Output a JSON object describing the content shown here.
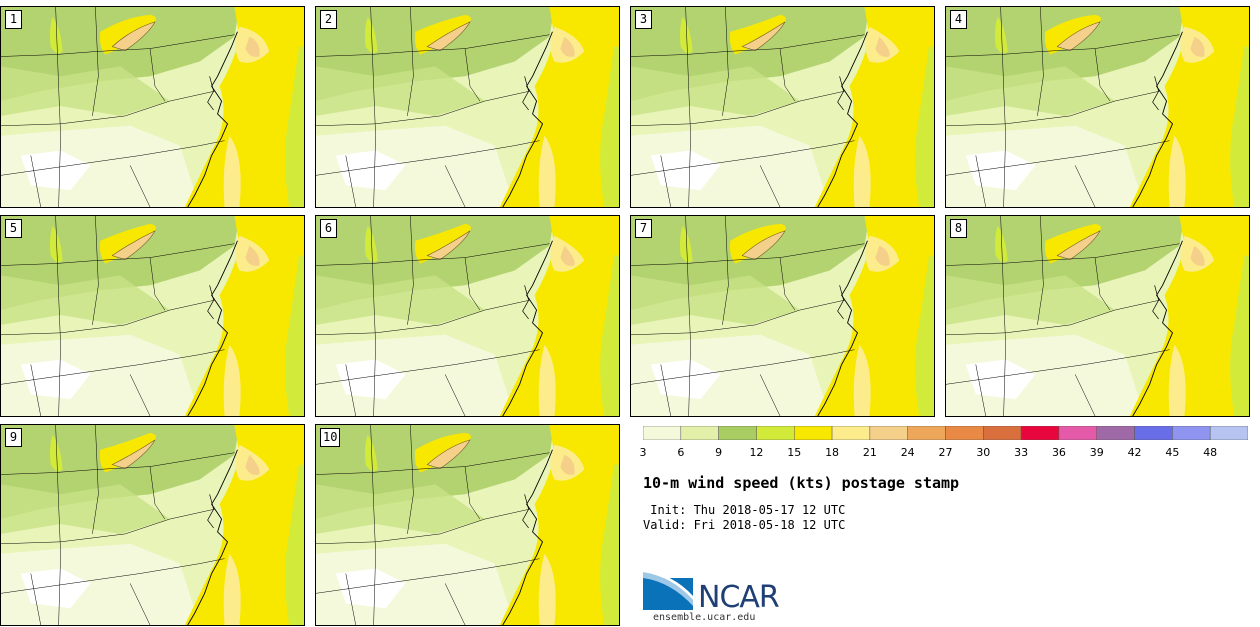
{
  "title": "10-m wind speed (kts) postage stamp",
  "init_line": " Init: Thu 2018-05-17 12 UTC",
  "valid_line": "Valid: Fri 2018-05-18 12 UTC",
  "panels": [
    {
      "label": "1"
    },
    {
      "label": "2"
    },
    {
      "label": "3"
    },
    {
      "label": "4"
    },
    {
      "label": "5"
    },
    {
      "label": "6"
    },
    {
      "label": "7"
    },
    {
      "label": "8"
    },
    {
      "label": "9"
    },
    {
      "label": "10"
    }
  ],
  "colorbar": {
    "ticks": [
      "3",
      "6",
      "9",
      "12",
      "15",
      "18",
      "21",
      "24",
      "27",
      "30",
      "33",
      "36",
      "39",
      "42",
      "45",
      "48"
    ],
    "colors": [
      "#f5f9dc",
      "#e3f0aa",
      "#a9cc63",
      "#d2eb3b",
      "#f8e800",
      "#fcec8c",
      "#f5d08a",
      "#eea65a",
      "#e88a45",
      "#d96f3c",
      "#e8073c",
      "#e45aa8",
      "#9e69a6",
      "#6a6de8",
      "#8e94f0",
      "#b7c4f2"
    ]
  },
  "logo": {
    "name": "NCAR",
    "url": "ensemble.ucar.edu"
  }
}
